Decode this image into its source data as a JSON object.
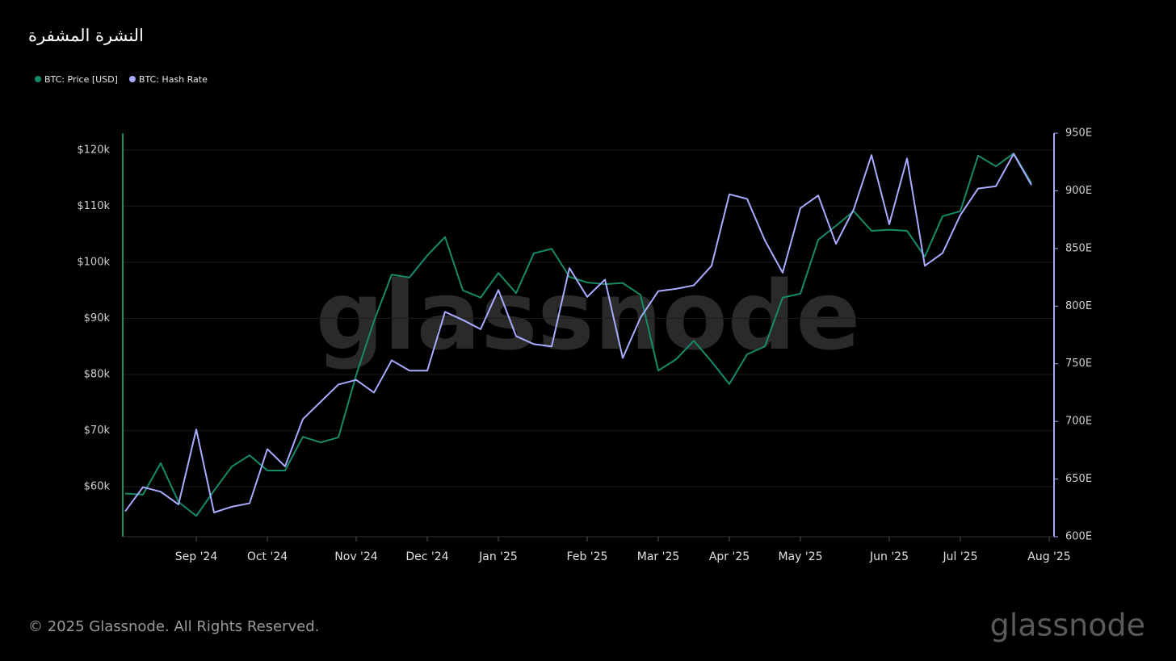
{
  "chart_data": {
    "type": "line",
    "title": "النشرة المشفرة",
    "watermark": "glassnode",
    "categories": [
      null,
      null,
      null,
      null,
      "Sep '24",
      null,
      null,
      null,
      "Oct '24",
      null,
      null,
      null,
      null,
      "Nov '24",
      null,
      null,
      null,
      "Dec '24",
      null,
      null,
      null,
      "Jan '25",
      null,
      null,
      null,
      null,
      "Feb '25",
      null,
      null,
      null,
      "Mar '25",
      null,
      null,
      null,
      "Apr '25",
      null,
      null,
      null,
      "May '25",
      null,
      null,
      null,
      null,
      "Jun '25",
      null,
      null,
      null,
      "Jul '25",
      null,
      null,
      null,
      null,
      "Aug '25"
    ],
    "series": [
      {
        "name": "BTC: Price [USD]",
        "color": "#178a6c",
        "axis": "y",
        "values": [
          58800,
          58600,
          64200,
          57300,
          54800,
          59300,
          63600,
          65600,
          62900,
          62900,
          68900,
          67900,
          68800,
          79900,
          89500,
          97800,
          97300,
          101200,
          104500,
          95000,
          93700,
          98100,
          94500,
          101600,
          102400,
          97400,
          96400,
          96100,
          96300,
          94200,
          80700,
          82700,
          86000,
          82300,
          78300,
          83600,
          85000,
          93700,
          94400,
          104000,
          106500,
          109100,
          105600,
          105800,
          105600,
          101000,
          108200,
          109100,
          119000,
          117100,
          119400,
          114100,
          null
        ]
      },
      {
        "name": "BTC: Hash Rate",
        "color": "#a9abff",
        "axis": "y2",
        "values": [
          622,
          643,
          639,
          628,
          693,
          621,
          626,
          629,
          676,
          661,
          702,
          717,
          732,
          736,
          725,
          753,
          744,
          744,
          795,
          788,
          780,
          814,
          774,
          767,
          765,
          833,
          808,
          823,
          755,
          790,
          813,
          815,
          818,
          835,
          897,
          893,
          857,
          829,
          885,
          896,
          854,
          884,
          931,
          871,
          928,
          835,
          846,
          879,
          902,
          904,
          932,
          905,
          null
        ]
      }
    ],
    "ylim": [
      51100,
      123000
    ],
    "yticks": [
      {
        "value": 60000,
        "label": "$60k"
      },
      {
        "value": 70000,
        "label": "$70k"
      },
      {
        "value": 80000,
        "label": "$80k"
      },
      {
        "value": 90000,
        "label": "$90k"
      },
      {
        "value": 100000,
        "label": "$100k"
      },
      {
        "value": 110000,
        "label": "$110k"
      },
      {
        "value": 120000,
        "label": "$120k"
      }
    ],
    "y2lim": [
      600,
      950
    ],
    "y2ticks": [
      {
        "value": 600,
        "label": "600E"
      },
      {
        "value": 650,
        "label": "650E"
      },
      {
        "value": 700,
        "label": "700E"
      },
      {
        "value": 750,
        "label": "750E"
      },
      {
        "value": 800,
        "label": "800E"
      },
      {
        "value": 850,
        "label": "850E"
      },
      {
        "value": 900,
        "label": "900E"
      },
      {
        "value": 950,
        "label": "950E"
      }
    ],
    "grid": true,
    "legend": "top-left"
  },
  "footer": {
    "copyright": "© 2025 Glassnode. All Rights Reserved.",
    "logo": "glassnode"
  }
}
